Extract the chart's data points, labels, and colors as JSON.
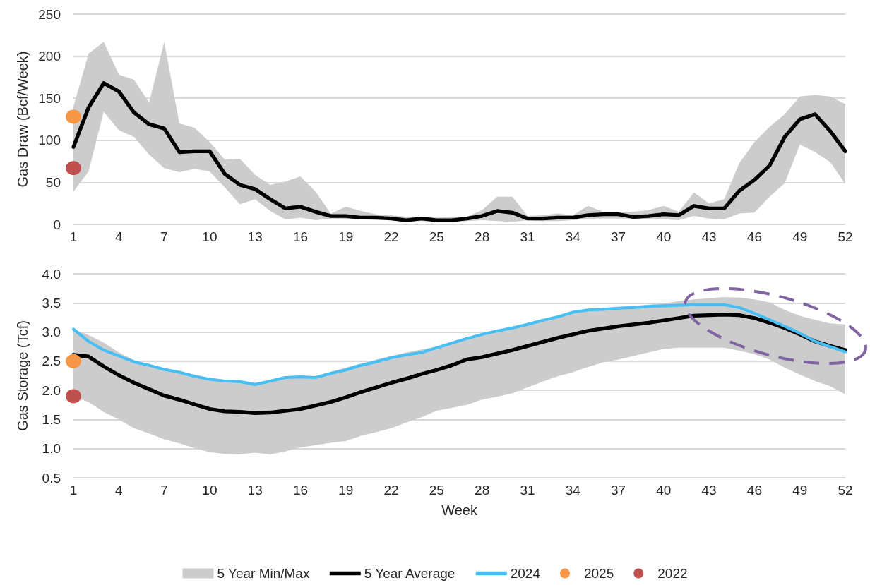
{
  "chart_data": [
    {
      "type": "line",
      "ylabel": "Gas Draw (Bcf/Week)",
      "x": [
        1,
        2,
        3,
        4,
        5,
        6,
        7,
        8,
        9,
        10,
        11,
        12,
        13,
        14,
        15,
        16,
        17,
        18,
        19,
        20,
        21,
        22,
        23,
        24,
        25,
        26,
        27,
        28,
        29,
        30,
        31,
        32,
        33,
        34,
        35,
        36,
        37,
        38,
        39,
        40,
        41,
        42,
        43,
        44,
        45,
        46,
        47,
        48,
        49,
        50,
        51,
        52
      ],
      "xlim": [
        1,
        52
      ],
      "xticks": [
        1,
        4,
        7,
        10,
        13,
        16,
        19,
        22,
        25,
        28,
        31,
        34,
        37,
        40,
        43,
        46,
        49,
        52
      ],
      "ylim": [
        0,
        250
      ],
      "yticks": [
        0,
        50,
        100,
        150,
        200,
        250
      ],
      "grid": "y",
      "legend": false,
      "series": [
        {
          "type": "area",
          "color": "#cccccc",
          "lower": [
            39,
            63,
            134,
            112,
            104,
            83,
            67,
            62,
            66,
            63,
            44,
            24,
            30,
            16,
            6,
            8,
            5,
            7,
            6,
            6,
            5,
            5,
            4,
            4,
            4,
            4,
            4,
            5,
            4,
            3,
            5,
            4,
            4,
            5,
            7,
            7,
            7,
            7,
            6,
            6,
            5,
            10,
            7,
            6,
            13,
            14,
            33,
            49,
            95,
            86,
            74,
            48
          ],
          "values": [
            null,
            null,
            null,
            null,
            null,
            null,
            null,
            null,
            null,
            null,
            null,
            null,
            null,
            null,
            null,
            null,
            null,
            null,
            null,
            null,
            null,
            null,
            null,
            null,
            null,
            null,
            null,
            null,
            null,
            null,
            null,
            null,
            null,
            null,
            null,
            null,
            null,
            null,
            null,
            null,
            null,
            null,
            null,
            null,
            null,
            null,
            null,
            null,
            null,
            null,
            null,
            null
          ],
          "upper": [
            140,
            203,
            217,
            178,
            172,
            145,
            217,
            120,
            115,
            98,
            77,
            78,
            59,
            47,
            51,
            57,
            39,
            13,
            21,
            16,
            12,
            11,
            9,
            9,
            8,
            9,
            9,
            17,
            33,
            33,
            10,
            11,
            13,
            11,
            22,
            15,
            15,
            15,
            17,
            22,
            15,
            38,
            25,
            30,
            73,
            98,
            116,
            131,
            152,
            154,
            152,
            143
          ]
        },
        {
          "color": "#000000",
          "marker": "none",
          "values": [
            92,
            139,
            168,
            158,
            133,
            119,
            114,
            86,
            87,
            87,
            60,
            47,
            42,
            30,
            19,
            21,
            15,
            10,
            10,
            8,
            8,
            7,
            5,
            7,
            5,
            5,
            7,
            10,
            16,
            14,
            7,
            7,
            8,
            8,
            11,
            12,
            12,
            9,
            10,
            12,
            11,
            22,
            19,
            19,
            40,
            53,
            70,
            104,
            125,
            131,
            111,
            87
          ]
        },
        {
          "type": "scatter",
          "color": "#f79646",
          "marker": "circle",
          "values": [
            128,
            null,
            null,
            null,
            null,
            null,
            null,
            null,
            null,
            null,
            null,
            null,
            null,
            null,
            null,
            null,
            null,
            null,
            null,
            null,
            null,
            null,
            null,
            null,
            null,
            null,
            null,
            null,
            null,
            null,
            null,
            null,
            null,
            null,
            null,
            null,
            null,
            null,
            null,
            null,
            null,
            null,
            null,
            null,
            null,
            null,
            null,
            null,
            null,
            null,
            null,
            null
          ]
        },
        {
          "type": "scatter",
          "color": "#c0504d",
          "marker": "circle",
          "values": [
            67,
            null,
            null,
            null,
            null,
            null,
            null,
            null,
            null,
            null,
            null,
            null,
            null,
            null,
            null,
            null,
            null,
            null,
            null,
            null,
            null,
            null,
            null,
            null,
            null,
            null,
            null,
            null,
            null,
            null,
            null,
            null,
            null,
            null,
            null,
            null,
            null,
            null,
            null,
            null,
            null,
            null,
            null,
            null,
            null,
            null,
            null,
            null,
            null,
            null,
            null,
            null
          ]
        }
      ]
    },
    {
      "type": "line",
      "ylabel": "Gas Storage (Tcf)",
      "xlabel": "Week",
      "x": [
        1,
        2,
        3,
        4,
        5,
        6,
        7,
        8,
        9,
        10,
        11,
        12,
        13,
        14,
        15,
        16,
        17,
        18,
        19,
        20,
        21,
        22,
        23,
        24,
        25,
        26,
        27,
        28,
        29,
        30,
        31,
        32,
        33,
        34,
        35,
        36,
        37,
        38,
        39,
        40,
        41,
        42,
        43,
        44,
        45,
        46,
        47,
        48,
        49,
        50,
        51,
        52
      ],
      "xlim": [
        1,
        52
      ],
      "xticks": [
        1,
        4,
        7,
        10,
        13,
        16,
        19,
        22,
        25,
        28,
        31,
        34,
        37,
        40,
        43,
        46,
        49,
        52
      ],
      "ylim": [
        0.5,
        4
      ],
      "yticks": [
        0.5,
        {
          "value": 1,
          "label": "1.0"
        },
        1.5,
        {
          "value": 2,
          "label": "2.0"
        },
        2.5,
        {
          "value": 3,
          "label": "3.0"
        },
        3.5,
        {
          "value": 4,
          "label": "4.0"
        }
      ],
      "grid": "y",
      "legend": "bottom",
      "series": [
        {
          "name": "5 Year Min/Max",
          "type": "area",
          "color": "#cccccc",
          "lower": [
            1.89,
            1.8,
            1.63,
            1.5,
            1.35,
            1.26,
            1.16,
            1.09,
            1.01,
            0.94,
            0.91,
            0.9,
            0.93,
            0.9,
            0.95,
            1.02,
            1.06,
            1.1,
            1.13,
            1.22,
            1.28,
            1.35,
            1.45,
            1.54,
            1.65,
            1.7,
            1.75,
            1.84,
            1.89,
            1.95,
            2.05,
            2.15,
            2.24,
            2.31,
            2.4,
            2.48,
            2.53,
            2.59,
            2.65,
            2.71,
            2.73,
            2.73,
            2.73,
            2.73,
            2.68,
            2.62,
            2.53,
            2.39,
            2.27,
            2.16,
            2.07,
            1.93
          ],
          "values": [
            null,
            null,
            null,
            null,
            null,
            null,
            null,
            null,
            null,
            null,
            null,
            null,
            null,
            null,
            null,
            null,
            null,
            null,
            null,
            null,
            null,
            null,
            null,
            null,
            null,
            null,
            null,
            null,
            null,
            null,
            null,
            null,
            null,
            null,
            null,
            null,
            null,
            null,
            null,
            null,
            null,
            null,
            null,
            null,
            null,
            null,
            null,
            null,
            null,
            null,
            null,
            null
          ],
          "upper": [
            3.05,
            2.95,
            2.82,
            2.65,
            2.52,
            2.43,
            2.37,
            2.32,
            2.27,
            2.21,
            2.18,
            2.16,
            2.13,
            2.17,
            2.23,
            2.24,
            2.23,
            2.32,
            2.39,
            2.46,
            2.53,
            2.59,
            2.65,
            2.7,
            2.75,
            2.82,
            2.9,
            2.97,
            3.03,
            3.09,
            3.15,
            3.21,
            3.28,
            3.35,
            3.39,
            3.41,
            3.43,
            3.45,
            3.47,
            3.49,
            3.53,
            3.56,
            3.58,
            3.6,
            3.59,
            3.56,
            3.51,
            3.38,
            3.28,
            3.21,
            3.15,
            3.13
          ]
        },
        {
          "name": "5 Year Average",
          "color": "#000000",
          "marker": "none",
          "values": [
            2.61,
            2.58,
            2.41,
            2.26,
            2.13,
            2.02,
            1.91,
            1.84,
            1.76,
            1.68,
            1.64,
            1.63,
            1.61,
            1.62,
            1.65,
            1.68,
            1.74,
            1.8,
            1.88,
            1.97,
            2.05,
            2.13,
            2.2,
            2.28,
            2.35,
            2.43,
            2.53,
            2.57,
            2.63,
            2.69,
            2.76,
            2.83,
            2.9,
            2.96,
            3.02,
            3.06,
            3.1,
            3.13,
            3.16,
            3.2,
            3.24,
            3.28,
            3.29,
            3.3,
            3.29,
            3.24,
            3.16,
            3.07,
            2.96,
            2.84,
            2.76,
            2.69
          ]
        },
        {
          "name": "2024",
          "color": "#47bff5",
          "marker": "none",
          "values": [
            3.05,
            2.84,
            2.69,
            2.59,
            2.49,
            2.43,
            2.36,
            2.31,
            2.24,
            2.19,
            2.16,
            2.15,
            2.1,
            2.16,
            2.22,
            2.23,
            2.22,
            2.29,
            2.35,
            2.43,
            2.49,
            2.56,
            2.61,
            2.65,
            2.73,
            2.81,
            2.89,
            2.96,
            3.02,
            3.07,
            3.13,
            3.2,
            3.26,
            3.34,
            3.38,
            3.39,
            3.41,
            3.42,
            3.44,
            3.45,
            3.46,
            3.47,
            3.47,
            3.47,
            3.42,
            3.32,
            3.21,
            3.1,
            2.98,
            2.84,
            2.75,
            2.66
          ]
        },
        {
          "name": "2025",
          "type": "scatter",
          "color": "#f79646",
          "marker": "circle",
          "values": [
            2.5,
            null,
            null,
            null,
            null,
            null,
            null,
            null,
            null,
            null,
            null,
            null,
            null,
            null,
            null,
            null,
            null,
            null,
            null,
            null,
            null,
            null,
            null,
            null,
            null,
            null,
            null,
            null,
            null,
            null,
            null,
            null,
            null,
            null,
            null,
            null,
            null,
            null,
            null,
            null,
            null,
            null,
            null,
            null,
            null,
            null,
            null,
            null,
            null,
            null,
            null,
            null
          ]
        },
        {
          "name": "2022",
          "type": "scatter",
          "color": "#c0504d",
          "marker": "circle",
          "values": [
            1.9,
            null,
            null,
            null,
            null,
            null,
            null,
            null,
            null,
            null,
            null,
            null,
            null,
            null,
            null,
            null,
            null,
            null,
            null,
            null,
            null,
            null,
            null,
            null,
            null,
            null,
            null,
            null,
            null,
            null,
            null,
            null,
            null,
            null,
            null,
            null,
            null,
            null,
            null,
            null,
            null,
            null,
            null,
            null,
            null,
            null,
            null,
            null,
            null,
            null,
            null,
            null
          ]
        }
      ]
    }
  ]
}
